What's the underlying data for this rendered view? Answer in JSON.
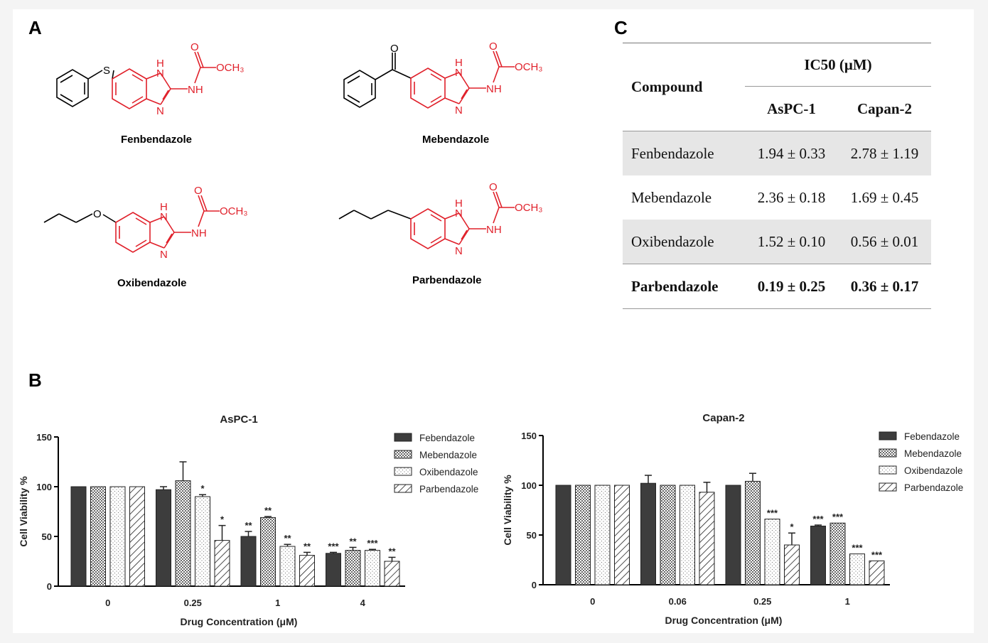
{
  "panel_labels": {
    "a": "A",
    "b": "B",
    "c": "C"
  },
  "molecules": [
    {
      "name": "Fenbendazole",
      "substituent": "S",
      "nh_ring": "H",
      "n_ring": "N",
      "carbonyl_o": "O",
      "methoxy": "OCH₃",
      "amide": "NH"
    },
    {
      "name": "Mebendazole",
      "substituent": "O",
      "nh_ring": "H",
      "n_ring": "N",
      "carbonyl_o": "O",
      "methoxy": "OCH₃",
      "amide": "NH"
    },
    {
      "name": "Oxibendazole",
      "substituent": "O",
      "nh_ring": "H",
      "n_ring": "N",
      "carbonyl_o": "O",
      "methoxy": "OCH₃",
      "amide": "NH"
    },
    {
      "name": "Parbendazole",
      "substituent": "",
      "nh_ring": "H",
      "n_ring": "N",
      "carbonyl_o": "O",
      "methoxy": "OCH₃",
      "amide": "NH"
    }
  ],
  "ic50_table": {
    "compound_header": "Compound",
    "ic50_header": "IC50 (μM)",
    "col1": "AsPC-1",
    "col2": "Capan-2",
    "rows": [
      {
        "name": "Fenbendazole",
        "aspc1": "1.94 ± 0.33",
        "capan2": "2.78 ± 1.19"
      },
      {
        "name": "Mebendazole",
        "aspc1": "2.36 ± 0.18",
        "capan2": "1.69 ± 0.45"
      },
      {
        "name": "Oxibendazole",
        "aspc1": "1.52 ± 0.10",
        "capan2": "0.56 ± 0.01"
      },
      {
        "name": "Parbendazole",
        "aspc1": "0.19 ± 0.25",
        "capan2": "0.36 ± 0.17"
      }
    ]
  },
  "chart_data": [
    {
      "type": "bar",
      "title": "AsPC-1",
      "xlabel": "Drug Concentration (μM)",
      "ylabel": "Cell Viability %",
      "ylim": [
        0,
        150
      ],
      "yticks": [
        "0",
        "50",
        "100",
        "150"
      ],
      "categories": [
        "0",
        "0.25",
        "1",
        "4"
      ],
      "series": [
        {
          "name": "Febendazole",
          "pattern": "solid",
          "values": [
            100,
            97,
            50,
            33
          ],
          "errors": [
            0,
            3,
            5,
            1
          ],
          "significance": [
            "",
            "",
            "**",
            "***"
          ]
        },
        {
          "name": "Mebendazole",
          "pattern": "checker",
          "values": [
            100,
            106,
            69,
            36
          ],
          "errors": [
            0,
            19,
            1,
            3
          ],
          "significance": [
            "",
            "",
            "**",
            "**"
          ]
        },
        {
          "name": "Oxibendazole",
          "pattern": "dots",
          "values": [
            100,
            90,
            40,
            36
          ],
          "errors": [
            0,
            2,
            2,
            1
          ],
          "significance": [
            "",
            "*",
            "**",
            "***"
          ]
        },
        {
          "name": "Parbendazole",
          "pattern": "hatch",
          "values": [
            100,
            46,
            31,
            25
          ],
          "errors": [
            0,
            15,
            3,
            4
          ],
          "significance": [
            "",
            "*",
            "**",
            "**"
          ]
        }
      ]
    },
    {
      "type": "bar",
      "title": "Capan-2",
      "xlabel": "Drug Concentration (μM)",
      "ylabel": "Cell Viability %",
      "ylim": [
        0,
        150
      ],
      "yticks": [
        "0",
        "50",
        "100",
        "150"
      ],
      "categories": [
        "0",
        "0.06",
        "0.25",
        "1"
      ],
      "series": [
        {
          "name": "Febendazole",
          "pattern": "solid",
          "values": [
            100,
            102,
            100,
            59
          ],
          "errors": [
            0,
            8,
            0,
            1
          ],
          "significance": [
            "",
            "",
            "",
            "***"
          ]
        },
        {
          "name": "Mebendazole",
          "pattern": "checker",
          "values": [
            100,
            100,
            104,
            62
          ],
          "errors": [
            0,
            0,
            8,
            0
          ],
          "significance": [
            "",
            "",
            "",
            "***"
          ]
        },
        {
          "name": "Oxibendazole",
          "pattern": "dots",
          "values": [
            100,
            100,
            66,
            31
          ],
          "errors": [
            0,
            0,
            0,
            0
          ],
          "significance": [
            "",
            "",
            "***",
            "***"
          ]
        },
        {
          "name": "Parbendazole",
          "pattern": "hatch",
          "values": [
            100,
            93,
            40,
            24
          ],
          "errors": [
            0,
            10,
            12,
            0
          ],
          "significance": [
            "",
            "",
            "*",
            "***"
          ]
        }
      ]
    }
  ]
}
